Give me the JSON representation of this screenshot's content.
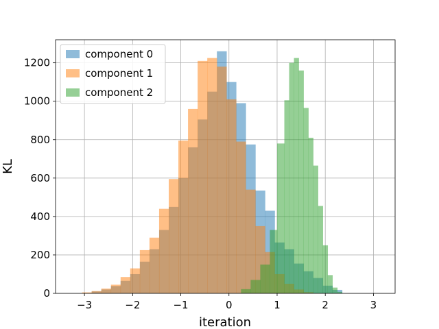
{
  "chart_data": {
    "type": "bar",
    "subtype": "overlapping-histogram",
    "title": "",
    "xlabel": "iteration",
    "ylabel": "KL",
    "xlim": [
      -3.6,
      3.45
    ],
    "ylim": [
      0,
      1320
    ],
    "xticks": [
      -3,
      -2,
      -1,
      0,
      1,
      2,
      3
    ],
    "yticks": [
      0,
      200,
      400,
      600,
      800,
      1000,
      1200
    ],
    "grid": true,
    "legend_position": "top-left",
    "series": [
      {
        "name": "component 0",
        "color": "#1f77b4",
        "opacity": 0.5,
        "bins": [
          {
            "x0": -2.85,
            "x1": -2.65,
            "count": 10
          },
          {
            "x0": -2.65,
            "x1": -2.45,
            "count": 20
          },
          {
            "x0": -2.45,
            "x1": -2.25,
            "count": 38
          },
          {
            "x0": -2.25,
            "x1": -2.05,
            "count": 65
          },
          {
            "x0": -2.05,
            "x1": -1.85,
            "count": 100
          },
          {
            "x0": -1.85,
            "x1": -1.65,
            "count": 165
          },
          {
            "x0": -1.65,
            "x1": -1.45,
            "count": 230
          },
          {
            "x0": -1.45,
            "x1": -1.25,
            "count": 330
          },
          {
            "x0": -1.25,
            "x1": -1.05,
            "count": 450
          },
          {
            "x0": -1.05,
            "x1": -0.85,
            "count": 600
          },
          {
            "x0": -0.85,
            "x1": -0.65,
            "count": 760
          },
          {
            "x0": -0.65,
            "x1": -0.45,
            "count": 905
          },
          {
            "x0": -0.45,
            "x1": -0.25,
            "count": 1050
          },
          {
            "x0": -0.25,
            "x1": -0.05,
            "count": 1260
          },
          {
            "x0": -0.05,
            "x1": 0.15,
            "count": 1100
          },
          {
            "x0": 0.15,
            "x1": 0.35,
            "count": 990
          },
          {
            "x0": 0.35,
            "x1": 0.55,
            "count": 775
          },
          {
            "x0": 0.55,
            "x1": 0.75,
            "count": 535
          },
          {
            "x0": 0.75,
            "x1": 0.95,
            "count": 430
          },
          {
            "x0": 0.95,
            "x1": 1.15,
            "count": 265
          },
          {
            "x0": 1.15,
            "x1": 1.35,
            "count": 230
          },
          {
            "x0": 1.35,
            "x1": 1.55,
            "count": 155
          },
          {
            "x0": 1.55,
            "x1": 1.75,
            "count": 115
          },
          {
            "x0": 1.75,
            "x1": 1.95,
            "count": 80
          },
          {
            "x0": 1.95,
            "x1": 2.15,
            "count": 40
          },
          {
            "x0": 2.15,
            "x1": 2.35,
            "count": 18
          }
        ]
      },
      {
        "name": "component 1",
        "color": "#ff7f0e",
        "opacity": 0.5,
        "bins": [
          {
            "x0": -3.05,
            "x1": -2.85,
            "count": 5
          },
          {
            "x0": -2.85,
            "x1": -2.65,
            "count": 12
          },
          {
            "x0": -2.65,
            "x1": -2.45,
            "count": 25
          },
          {
            "x0": -2.45,
            "x1": -2.25,
            "count": 45
          },
          {
            "x0": -2.25,
            "x1": -2.05,
            "count": 85
          },
          {
            "x0": -2.05,
            "x1": -1.85,
            "count": 130
          },
          {
            "x0": -1.85,
            "x1": -1.65,
            "count": 225
          },
          {
            "x0": -1.65,
            "x1": -1.45,
            "count": 290
          },
          {
            "x0": -1.45,
            "x1": -1.25,
            "count": 440
          },
          {
            "x0": -1.25,
            "x1": -1.05,
            "count": 595
          },
          {
            "x0": -1.05,
            "x1": -0.85,
            "count": 795
          },
          {
            "x0": -0.85,
            "x1": -0.65,
            "count": 960
          },
          {
            "x0": -0.65,
            "x1": -0.45,
            "count": 1210
          },
          {
            "x0": -0.45,
            "x1": -0.25,
            "count": 1225
          },
          {
            "x0": -0.25,
            "x1": -0.05,
            "count": 1180
          },
          {
            "x0": -0.05,
            "x1": 0.15,
            "count": 1010
          },
          {
            "x0": 0.15,
            "x1": 0.35,
            "count": 790
          },
          {
            "x0": 0.35,
            "x1": 0.55,
            "count": 540
          },
          {
            "x0": 0.55,
            "x1": 0.75,
            "count": 350
          },
          {
            "x0": 0.75,
            "x1": 0.95,
            "count": 215
          },
          {
            "x0": 0.95,
            "x1": 1.15,
            "count": 100
          },
          {
            "x0": 1.15,
            "x1": 1.35,
            "count": 50
          },
          {
            "x0": 1.35,
            "x1": 1.55,
            "count": 20
          },
          {
            "x0": 1.55,
            "x1": 1.75,
            "count": 6
          }
        ]
      },
      {
        "name": "component 2",
        "color": "#2ca02c",
        "opacity": 0.5,
        "bins": [
          {
            "x0": 0.25,
            "x1": 0.45,
            "count": 22
          },
          {
            "x0": 0.45,
            "x1": 0.65,
            "count": 70
          },
          {
            "x0": 0.65,
            "x1": 0.85,
            "count": 150
          },
          {
            "x0": 0.85,
            "x1": 1.0,
            "count": 330
          },
          {
            "x0": 1.0,
            "x1": 1.15,
            "count": 780
          },
          {
            "x0": 1.15,
            "x1": 1.25,
            "count": 1005
          },
          {
            "x0": 1.25,
            "x1": 1.35,
            "count": 1200
          },
          {
            "x0": 1.35,
            "x1": 1.45,
            "count": 1225
          },
          {
            "x0": 1.45,
            "x1": 1.55,
            "count": 1160
          },
          {
            "x0": 1.55,
            "x1": 1.65,
            "count": 965
          },
          {
            "x0": 1.65,
            "x1": 1.75,
            "count": 810
          },
          {
            "x0": 1.75,
            "x1": 1.85,
            "count": 665
          },
          {
            "x0": 1.85,
            "x1": 1.95,
            "count": 455
          },
          {
            "x0": 1.95,
            "x1": 2.05,
            "count": 250
          },
          {
            "x0": 2.05,
            "x1": 2.15,
            "count": 95
          },
          {
            "x0": 2.15,
            "x1": 2.25,
            "count": 30
          },
          {
            "x0": 2.25,
            "x1": 2.35,
            "count": 8
          }
        ]
      }
    ]
  }
}
